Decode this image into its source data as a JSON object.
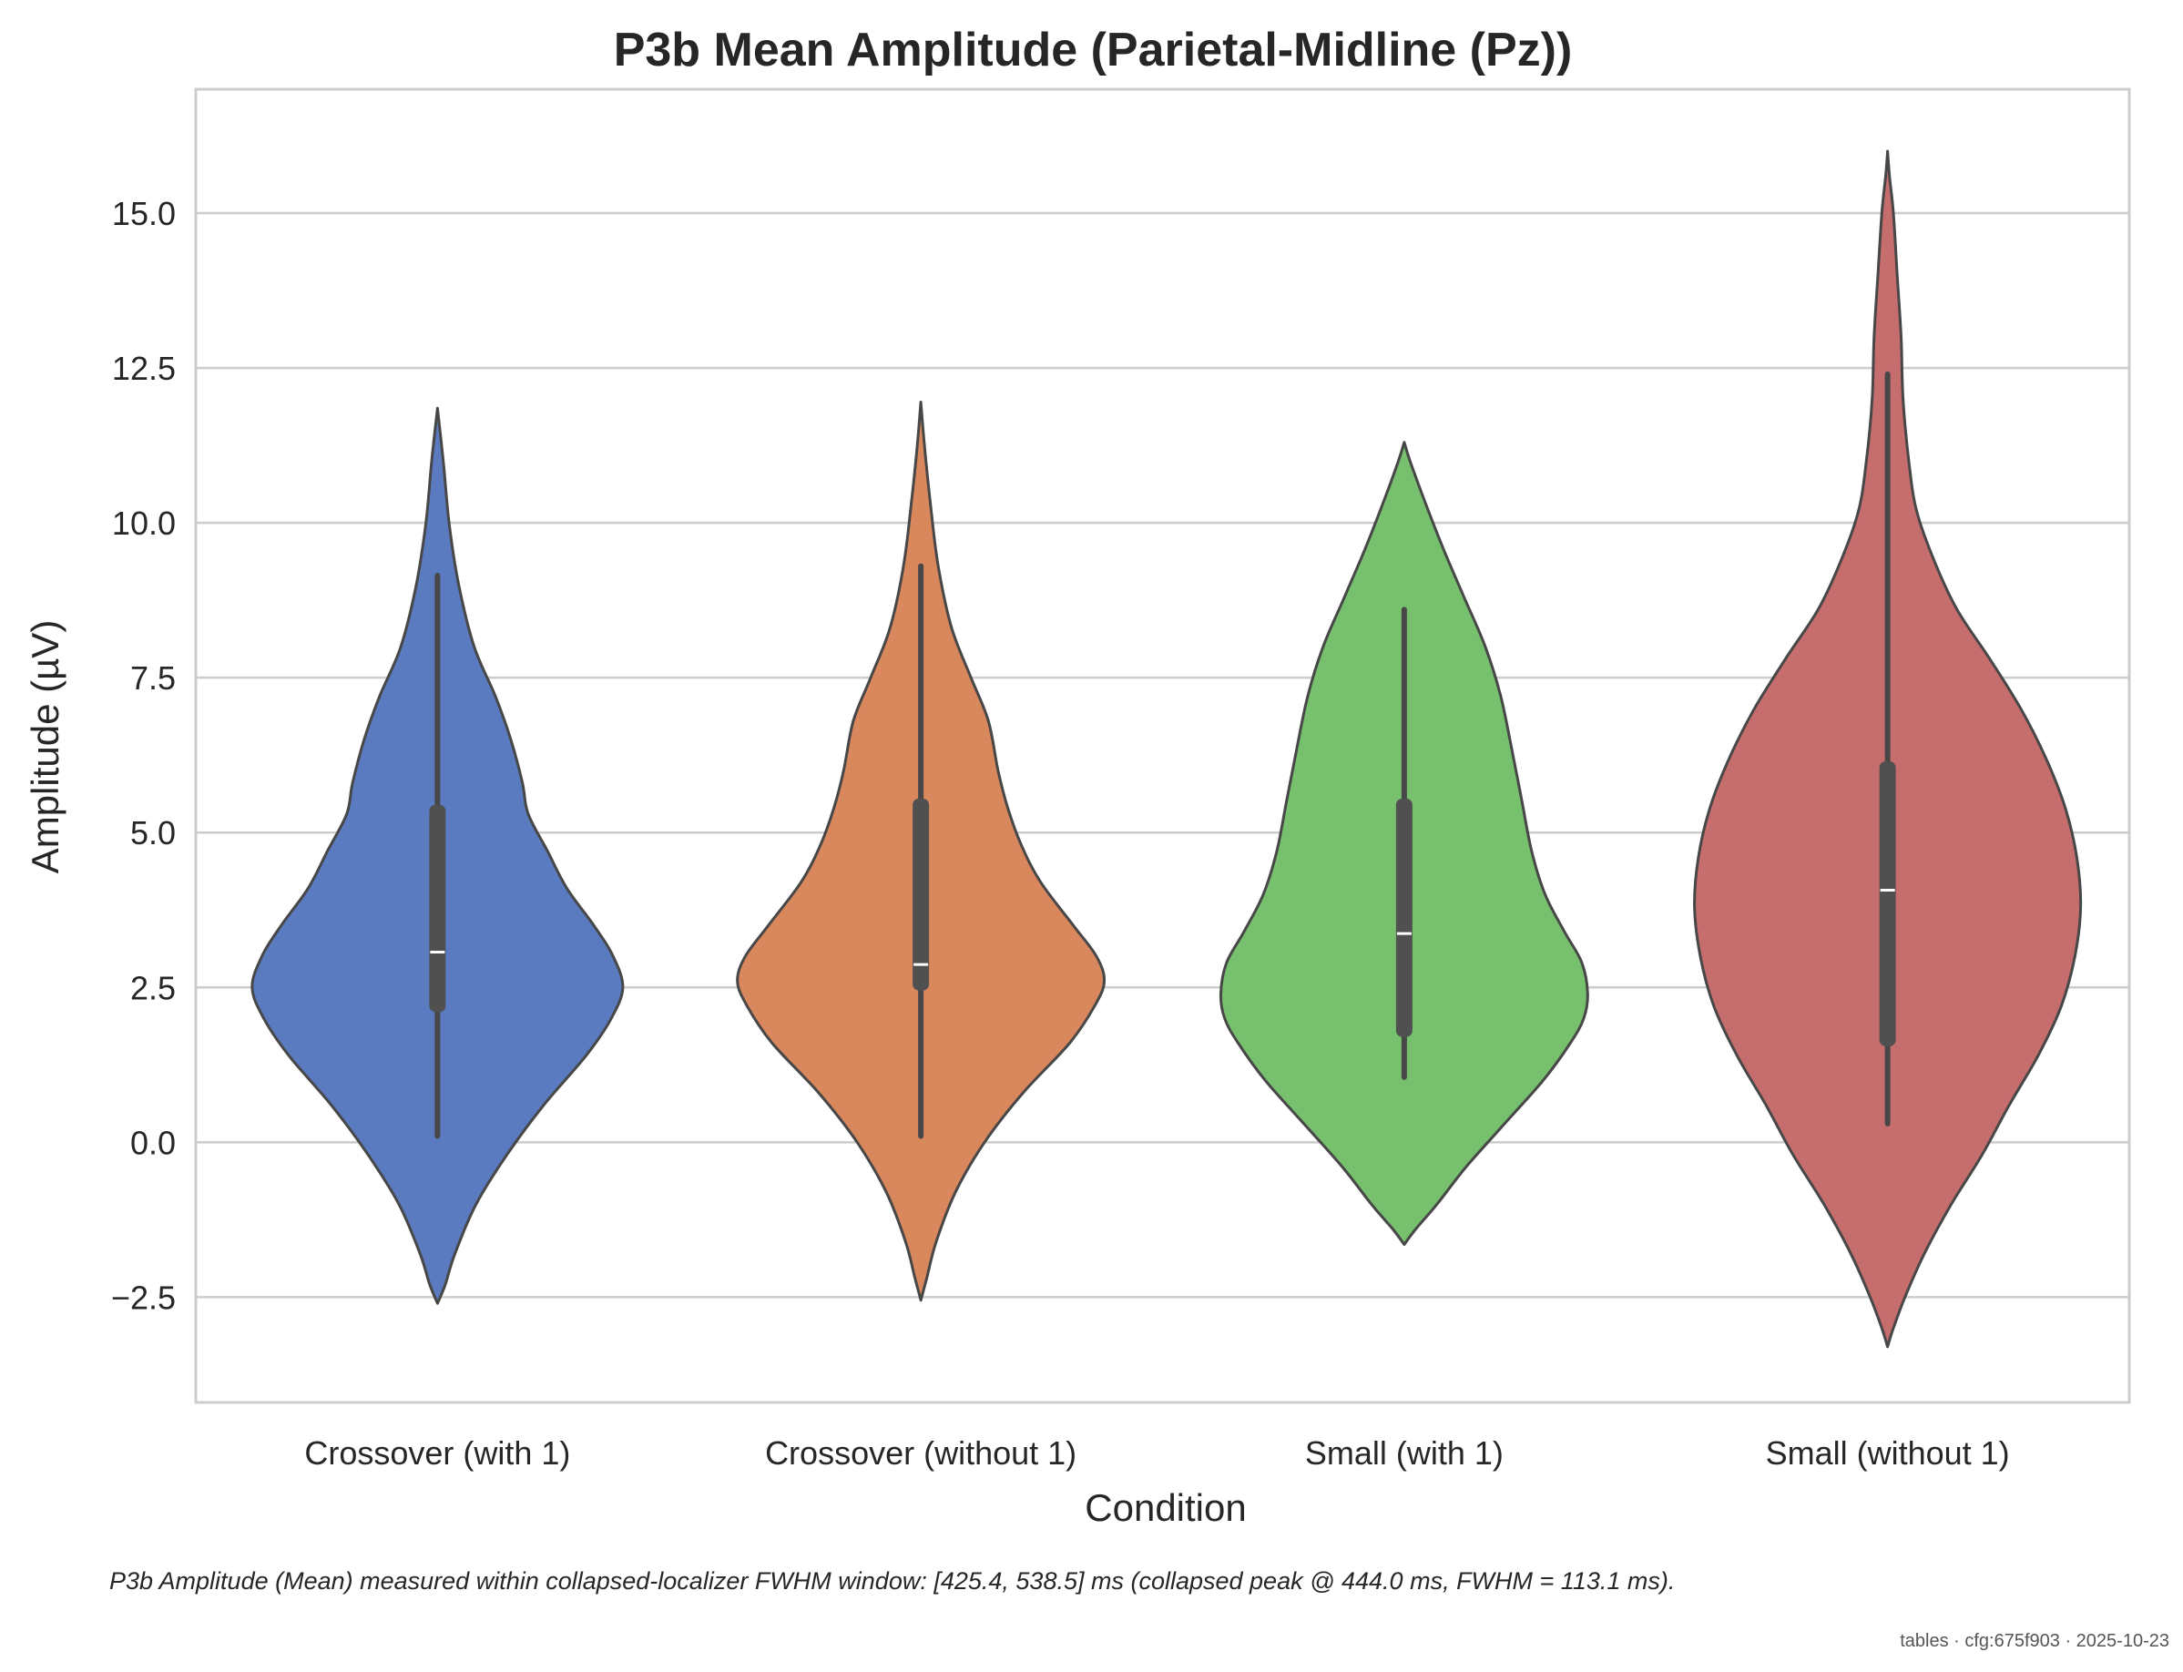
{
  "chart_data": {
    "type": "violin",
    "title": "P3b Mean Amplitude (Parietal-Midline (Pz))",
    "xlabel": "Condition",
    "ylabel": "Amplitude (µV)",
    "ylim": [
      -4.2,
      17.0
    ],
    "yticks": [
      -2.5,
      0.0,
      2.5,
      5.0,
      7.5,
      10.0,
      12.5,
      15.0
    ],
    "ytick_labels": [
      "−2.5",
      "0.0",
      "2.5",
      "5.0",
      "7.5",
      "10.0",
      "12.5",
      "15.0"
    ],
    "grid": "horizontal",
    "categories": [
      "Crossover (with 1)",
      "Crossover (without 1)",
      "Small (with 1)",
      "Small (without 1)"
    ],
    "series": [
      {
        "color": "#5a7bbf",
        "violin_min": -2.6,
        "violin_max": 11.85,
        "whisker_low": 0.1,
        "q1": 2.1,
        "median": 3.07,
        "q3": 5.45,
        "whisker_high": 9.15,
        "density_profile": [
          [
            -2.6,
            0.0
          ],
          [
            -2.3,
            0.04
          ],
          [
            -1.8,
            0.09
          ],
          [
            -1.0,
            0.2
          ],
          [
            -0.2,
            0.36
          ],
          [
            0.6,
            0.55
          ],
          [
            1.4,
            0.77
          ],
          [
            2.0,
            0.9
          ],
          [
            2.5,
            0.96
          ],
          [
            3.0,
            0.91
          ],
          [
            3.5,
            0.81
          ],
          [
            4.1,
            0.67
          ],
          [
            4.7,
            0.57
          ],
          [
            5.3,
            0.47
          ],
          [
            5.8,
            0.44
          ],
          [
            6.5,
            0.38
          ],
          [
            7.2,
            0.3
          ],
          [
            8.0,
            0.19
          ],
          [
            9.0,
            0.11
          ],
          [
            10.0,
            0.06
          ],
          [
            11.0,
            0.03
          ],
          [
            11.85,
            0.0
          ]
        ]
      },
      {
        "color": "#d9875d",
        "violin_min": -2.55,
        "violin_max": 11.95,
        "whisker_low": 0.1,
        "q1": 2.45,
        "median": 2.87,
        "q3": 5.55,
        "whisker_high": 9.3,
        "density_profile": [
          [
            -2.55,
            0.0
          ],
          [
            -2.2,
            0.03
          ],
          [
            -1.6,
            0.08
          ],
          [
            -0.8,
            0.18
          ],
          [
            0.0,
            0.33
          ],
          [
            0.8,
            0.53
          ],
          [
            1.6,
            0.77
          ],
          [
            2.2,
            0.9
          ],
          [
            2.6,
            0.95
          ],
          [
            3.0,
            0.91
          ],
          [
            3.5,
            0.79
          ],
          [
            4.2,
            0.62
          ],
          [
            4.8,
            0.52
          ],
          [
            5.4,
            0.45
          ],
          [
            6.0,
            0.4
          ],
          [
            6.8,
            0.35
          ],
          [
            7.5,
            0.26
          ],
          [
            8.3,
            0.16
          ],
          [
            9.3,
            0.09
          ],
          [
            10.3,
            0.05
          ],
          [
            11.2,
            0.02
          ],
          [
            11.95,
            0.0
          ]
        ]
      },
      {
        "color": "#77c06e",
        "violin_min": -1.65,
        "violin_max": 11.3,
        "whisker_low": 1.05,
        "q1": 1.7,
        "median": 3.37,
        "q3": 5.55,
        "whisker_high": 8.6,
        "density_profile": [
          [
            -1.65,
            0.0
          ],
          [
            -1.4,
            0.06
          ],
          [
            -1.0,
            0.17
          ],
          [
            -0.4,
            0.32
          ],
          [
            0.3,
            0.52
          ],
          [
            1.0,
            0.72
          ],
          [
            1.6,
            0.86
          ],
          [
            2.0,
            0.93
          ],
          [
            2.4,
            0.95
          ],
          [
            2.9,
            0.92
          ],
          [
            3.4,
            0.83
          ],
          [
            4.0,
            0.73
          ],
          [
            4.7,
            0.66
          ],
          [
            5.5,
            0.61
          ],
          [
            6.3,
            0.56
          ],
          [
            7.2,
            0.5
          ],
          [
            8.0,
            0.42
          ],
          [
            8.8,
            0.31
          ],
          [
            9.6,
            0.2
          ],
          [
            10.4,
            0.1
          ],
          [
            11.0,
            0.03
          ],
          [
            11.3,
            0.0
          ]
        ]
      },
      {
        "color": "#c66d6d",
        "violin_min": -3.3,
        "violin_max": 16.0,
        "whisker_low": 0.3,
        "q1": 1.55,
        "median": 4.07,
        "q3": 6.15,
        "whisker_high": 12.4,
        "density_profile": [
          [
            -3.3,
            0.0
          ],
          [
            -3.0,
            0.03
          ],
          [
            -2.5,
            0.09
          ],
          [
            -1.8,
            0.19
          ],
          [
            -1.0,
            0.33
          ],
          [
            -0.2,
            0.49
          ],
          [
            0.6,
            0.63
          ],
          [
            1.4,
            0.78
          ],
          [
            2.2,
            0.9
          ],
          [
            3.0,
            0.97
          ],
          [
            3.8,
            1.0
          ],
          [
            4.6,
            0.98
          ],
          [
            5.4,
            0.92
          ],
          [
            6.2,
            0.82
          ],
          [
            7.0,
            0.69
          ],
          [
            7.8,
            0.53
          ],
          [
            8.6,
            0.36
          ],
          [
            9.4,
            0.24
          ],
          [
            10.2,
            0.15
          ],
          [
            11.0,
            0.11
          ],
          [
            12.0,
            0.08
          ],
          [
            13.0,
            0.07
          ],
          [
            14.0,
            0.05
          ],
          [
            15.0,
            0.03
          ],
          [
            15.6,
            0.01
          ],
          [
            16.0,
            0.0
          ]
        ]
      }
    ]
  },
  "caption": "P3b Amplitude (Mean) measured within collapsed-localizer FWHM window: [425.4, 538.5] ms (collapsed peak @ 444.0 ms, FWHM = 113.1 ms).",
  "footer": "tables · cfg:675f903 · 2025-10-23"
}
